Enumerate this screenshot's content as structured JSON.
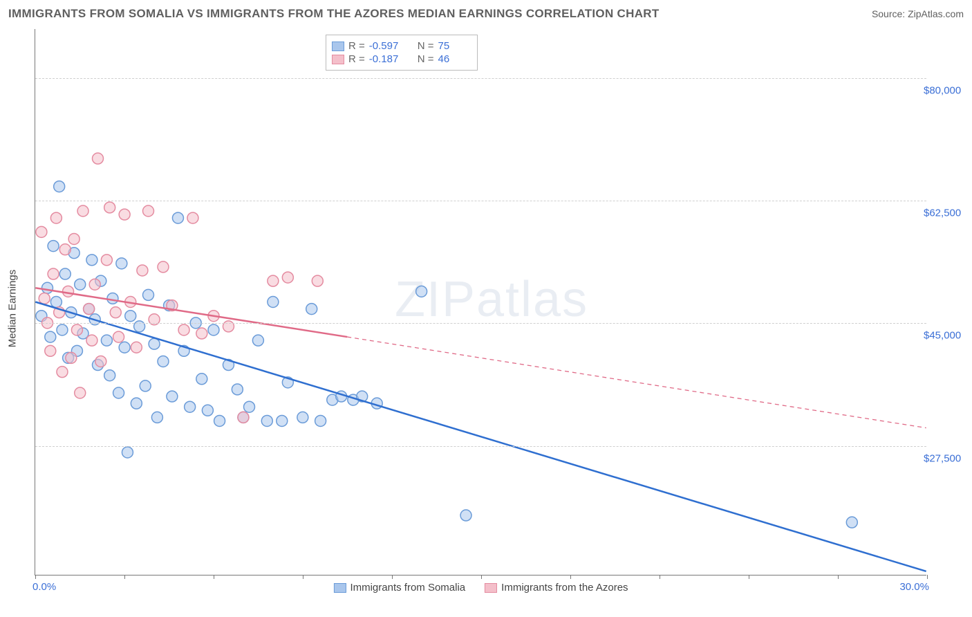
{
  "title": "IMMIGRANTS FROM SOMALIA VS IMMIGRANTS FROM THE AZORES MEDIAN EARNINGS CORRELATION CHART",
  "source": "Source: ZipAtlas.com",
  "watermark": "ZIPatlas",
  "yaxis_title": "Median Earnings",
  "chart": {
    "type": "scatter",
    "xlim": [
      0,
      30
    ],
    "ylim": [
      9000,
      87000
    ],
    "x_tick_positions": [
      0,
      3,
      6,
      9,
      12,
      15,
      18,
      21,
      24,
      27,
      30
    ],
    "x_label_start": "0.0%",
    "x_label_end": "30.0%",
    "y_gridlines": [
      27500,
      45000,
      62500,
      80000
    ],
    "y_labels": [
      "$27,500",
      "$45,000",
      "$62,500",
      "$80,000"
    ],
    "grid_color": "#cfcfcf",
    "axis_color": "#777777",
    "background_color": "#ffffff",
    "label_color": "#3b6fd6",
    "marker_radius": 8,
    "marker_stroke_width": 1.5,
    "point_opacity": 0.55
  },
  "series": [
    {
      "name": "Immigrants from Somalia",
      "color_fill": "#a9c6ec",
      "color_stroke": "#6a9bd8",
      "trend_color": "#2f6fd0",
      "R": "-0.597",
      "N": "75",
      "trend": {
        "x1": 0.0,
        "y1": 48000,
        "x2": 30.0,
        "y2": 9500,
        "solid_until_x": 30.0
      },
      "points": [
        [
          0.2,
          46000
        ],
        [
          0.4,
          50000
        ],
        [
          0.5,
          43000
        ],
        [
          0.6,
          56000
        ],
        [
          0.7,
          48000
        ],
        [
          0.8,
          64500
        ],
        [
          0.9,
          44000
        ],
        [
          1.0,
          52000
        ],
        [
          1.1,
          40000
        ],
        [
          1.2,
          46500
        ],
        [
          1.3,
          55000
        ],
        [
          1.4,
          41000
        ],
        [
          1.5,
          50500
        ],
        [
          1.6,
          43500
        ],
        [
          1.8,
          47000
        ],
        [
          1.9,
          54000
        ],
        [
          2.0,
          45500
        ],
        [
          2.1,
          39000
        ],
        [
          2.2,
          51000
        ],
        [
          2.4,
          42500
        ],
        [
          2.5,
          37500
        ],
        [
          2.6,
          48500
        ],
        [
          2.8,
          35000
        ],
        [
          2.9,
          53500
        ],
        [
          3.0,
          41500
        ],
        [
          3.1,
          26500
        ],
        [
          3.2,
          46000
        ],
        [
          3.4,
          33500
        ],
        [
          3.5,
          44500
        ],
        [
          3.7,
          36000
        ],
        [
          3.8,
          49000
        ],
        [
          4.0,
          42000
        ],
        [
          4.1,
          31500
        ],
        [
          4.3,
          39500
        ],
        [
          4.5,
          47500
        ],
        [
          4.6,
          34500
        ],
        [
          4.8,
          60000
        ],
        [
          5.0,
          41000
        ],
        [
          5.2,
          33000
        ],
        [
          5.4,
          45000
        ],
        [
          5.6,
          37000
        ],
        [
          5.8,
          32500
        ],
        [
          6.0,
          44000
        ],
        [
          6.2,
          31000
        ],
        [
          6.5,
          39000
        ],
        [
          6.8,
          35500
        ],
        [
          7.0,
          31500
        ],
        [
          7.2,
          33000
        ],
        [
          7.5,
          42500
        ],
        [
          7.8,
          31000
        ],
        [
          8.0,
          48000
        ],
        [
          8.3,
          31000
        ],
        [
          8.5,
          36500
        ],
        [
          9.0,
          31500
        ],
        [
          9.3,
          47000
        ],
        [
          9.6,
          31000
        ],
        [
          10.0,
          34000
        ],
        [
          10.3,
          34500
        ],
        [
          10.7,
          34000
        ],
        [
          11.0,
          34500
        ],
        [
          11.5,
          33500
        ],
        [
          13.0,
          49500
        ],
        [
          14.5,
          17500
        ],
        [
          27.5,
          16500
        ]
      ]
    },
    {
      "name": "Immigrants from the Azores",
      "color_fill": "#f4bfca",
      "color_stroke": "#e48ba0",
      "trend_color": "#e06a87",
      "R": "-0.187",
      "N": "46",
      "trend": {
        "x1": 0.0,
        "y1": 50000,
        "x2": 30.0,
        "y2": 30000,
        "solid_until_x": 10.5
      },
      "points": [
        [
          0.2,
          58000
        ],
        [
          0.3,
          48500
        ],
        [
          0.4,
          45000
        ],
        [
          0.5,
          41000
        ],
        [
          0.6,
          52000
        ],
        [
          0.7,
          60000
        ],
        [
          0.8,
          46500
        ],
        [
          0.9,
          38000
        ],
        [
          1.0,
          55500
        ],
        [
          1.1,
          49500
        ],
        [
          1.2,
          40000
        ],
        [
          1.3,
          57000
        ],
        [
          1.4,
          44000
        ],
        [
          1.5,
          35000
        ],
        [
          1.6,
          61000
        ],
        [
          1.8,
          47000
        ],
        [
          1.9,
          42500
        ],
        [
          2.0,
          50500
        ],
        [
          2.1,
          68500
        ],
        [
          2.2,
          39500
        ],
        [
          2.4,
          54000
        ],
        [
          2.5,
          61500
        ],
        [
          2.7,
          46500
        ],
        [
          2.8,
          43000
        ],
        [
          3.0,
          60500
        ],
        [
          3.2,
          48000
        ],
        [
          3.4,
          41500
        ],
        [
          3.6,
          52500
        ],
        [
          3.8,
          61000
        ],
        [
          4.0,
          45500
        ],
        [
          4.3,
          53000
        ],
        [
          4.6,
          47500
        ],
        [
          5.0,
          44000
        ],
        [
          5.3,
          60000
        ],
        [
          5.6,
          43500
        ],
        [
          6.0,
          46000
        ],
        [
          6.5,
          44500
        ],
        [
          7.0,
          31500
        ],
        [
          8.0,
          51000
        ],
        [
          8.5,
          51500
        ],
        [
          9.5,
          51000
        ]
      ]
    }
  ],
  "statbox": {
    "labels": {
      "R": "R =",
      "N": "N ="
    }
  },
  "legend": {
    "series1": "Immigrants from Somalia",
    "series2": "Immigrants from the Azores"
  }
}
